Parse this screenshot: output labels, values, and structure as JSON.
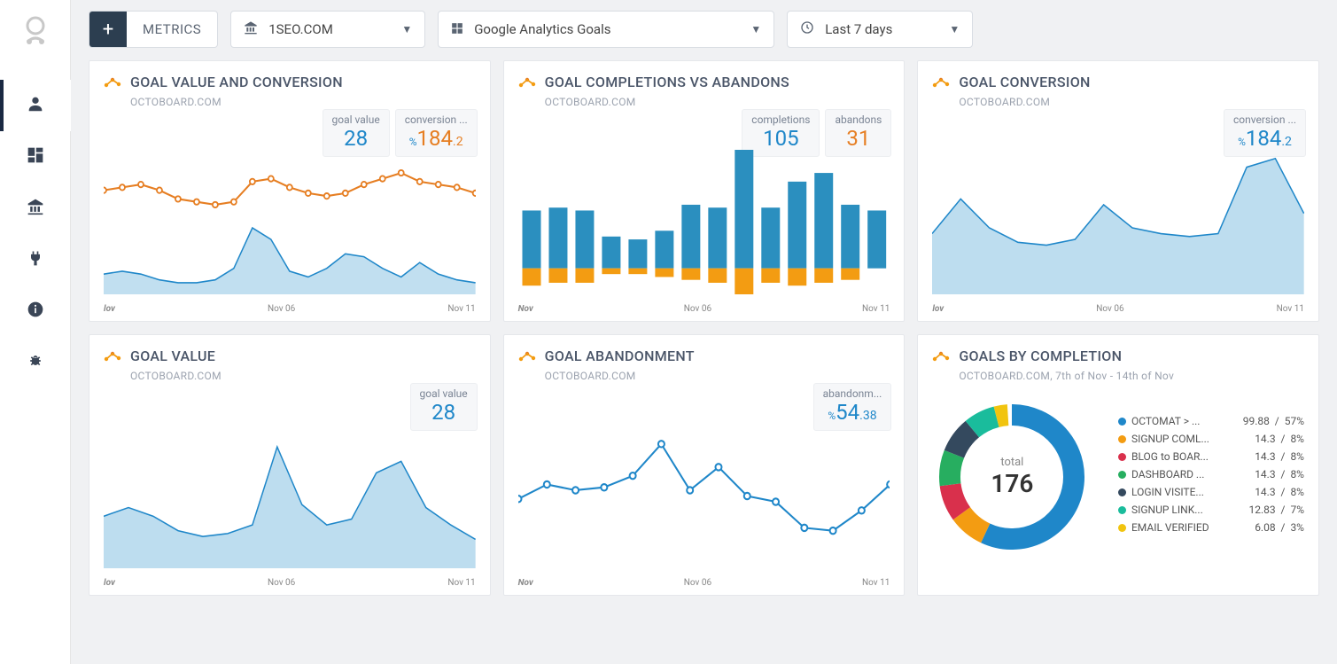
{
  "toolbar": {
    "metrics_label": "METRICS",
    "site_selector": "1SEO.COM",
    "source_selector": "Google Analytics Goals",
    "date_selector": "Last 7 days"
  },
  "axis": {
    "labels": [
      "lov",
      "Nov 06",
      "Nov 11"
    ],
    "labels_alt": [
      "Nov",
      "Nov 06",
      "Nov 11"
    ]
  },
  "colors": {
    "blue": "#1f87c9",
    "blue_fill": "#a7d2ea",
    "orange": "#e67e22",
    "orange_fill": "#f5a45a",
    "bar_blue": "#2b8fbf",
    "bar_orange": "#f39c12",
    "grid": "#e5e7eb",
    "bg": "#f0f1f3"
  },
  "cards": {
    "c1": {
      "title": "GOAL VALUE AND CONVERSION",
      "subtitle": "OCTOBOARD.COM",
      "badges": [
        {
          "label": "goal value",
          "value": "28",
          "color": "blue"
        },
        {
          "label": "conversion ...",
          "prefix": "%",
          "value": "184",
          "suffix": ".2",
          "color": "orange"
        }
      ],
      "type": "dual-line",
      "series_orange": [
        72,
        74,
        76,
        72,
        66,
        64,
        62,
        64,
        78,
        80,
        74,
        70,
        68,
        70,
        76,
        80,
        84,
        78,
        76,
        74,
        70
      ],
      "series_blue_area": [
        14,
        16,
        14,
        10,
        8,
        8,
        10,
        18,
        46,
        38,
        16,
        12,
        18,
        28,
        26,
        18,
        12,
        22,
        14,
        10,
        8
      ]
    },
    "c2": {
      "title": "GOAL COMPLETIONS VS ABANDONS",
      "subtitle": "OCTOBOARD.COM",
      "badges": [
        {
          "label": "completions",
          "value": "105",
          "color": "blue"
        },
        {
          "label": "abandons",
          "value": "31",
          "color": "orange"
        }
      ],
      "type": "stacked-bar",
      "completions": [
        40,
        42,
        40,
        22,
        20,
        26,
        44,
        42,
        96,
        42,
        60,
        66,
        44,
        40
      ],
      "abandons": [
        12,
        10,
        10,
        4,
        4,
        6,
        8,
        10,
        -26,
        10,
        12,
        10,
        8,
        0
      ]
    },
    "c3": {
      "title": "GOAL CONVERSION",
      "subtitle": "OCTOBOARD.COM",
      "badges": [
        {
          "label": "conversion ...",
          "prefix": "%",
          "value": "184",
          "suffix": ".2",
          "color": "blue"
        }
      ],
      "type": "area",
      "series": [
        42,
        66,
        46,
        36,
        34,
        38,
        62,
        46,
        42,
        40,
        42,
        88,
        94,
        56
      ]
    },
    "c4": {
      "title": "GOAL VALUE",
      "subtitle": "OCTOBOARD.COM",
      "badges": [
        {
          "label": "goal value",
          "value": "28",
          "color": "blue"
        }
      ],
      "type": "area",
      "series": [
        36,
        42,
        36,
        26,
        22,
        24,
        30,
        84,
        44,
        30,
        34,
        66,
        74,
        42,
        30,
        20
      ]
    },
    "c5": {
      "title": "GOAL ABANDONMENT",
      "subtitle": "OCTOBOARD.COM",
      "badges": [
        {
          "label": "abandonm...",
          "prefix": "%",
          "value": "54",
          "suffix": ".38",
          "color": "blue"
        }
      ],
      "type": "line",
      "series": [
        48,
        58,
        54,
        56,
        64,
        86,
        54,
        70,
        50,
        46,
        28,
        26,
        40,
        58
      ]
    },
    "c6": {
      "title": "GOALS BY COMPLETION",
      "subtitle": "OCTOBOARD.COM, 7th of Nov - 14th of Nov",
      "type": "donut",
      "center_label": "total",
      "center_value": "176",
      "items": [
        {
          "label": "OCTOMAT > ...",
          "v1": "99.88",
          "v2": "57%",
          "color": "#1f87c9"
        },
        {
          "label": "SIGNUP COML...",
          "v1": "14.3",
          "v2": "8%",
          "color": "#f39c12"
        },
        {
          "label": "BLOG to BOAR...",
          "v1": "14.3",
          "v2": "8%",
          "color": "#d9304c"
        },
        {
          "label": "DASHBOARD ...",
          "v1": "14.3",
          "v2": "8%",
          "color": "#27ae60"
        },
        {
          "label": "LOGIN VISITE...",
          "v1": "14.3",
          "v2": "8%",
          "color": "#34495e"
        },
        {
          "label": "SIGNUP LINK...",
          "v1": "12.83",
          "v2": "7%",
          "color": "#1abc9c"
        },
        {
          "label": "EMAIL VERIFIED",
          "v1": "6.08",
          "v2": "3%",
          "color": "#f1c40f"
        }
      ],
      "slices": [
        57,
        8,
        8,
        8,
        8,
        7,
        3
      ]
    }
  }
}
